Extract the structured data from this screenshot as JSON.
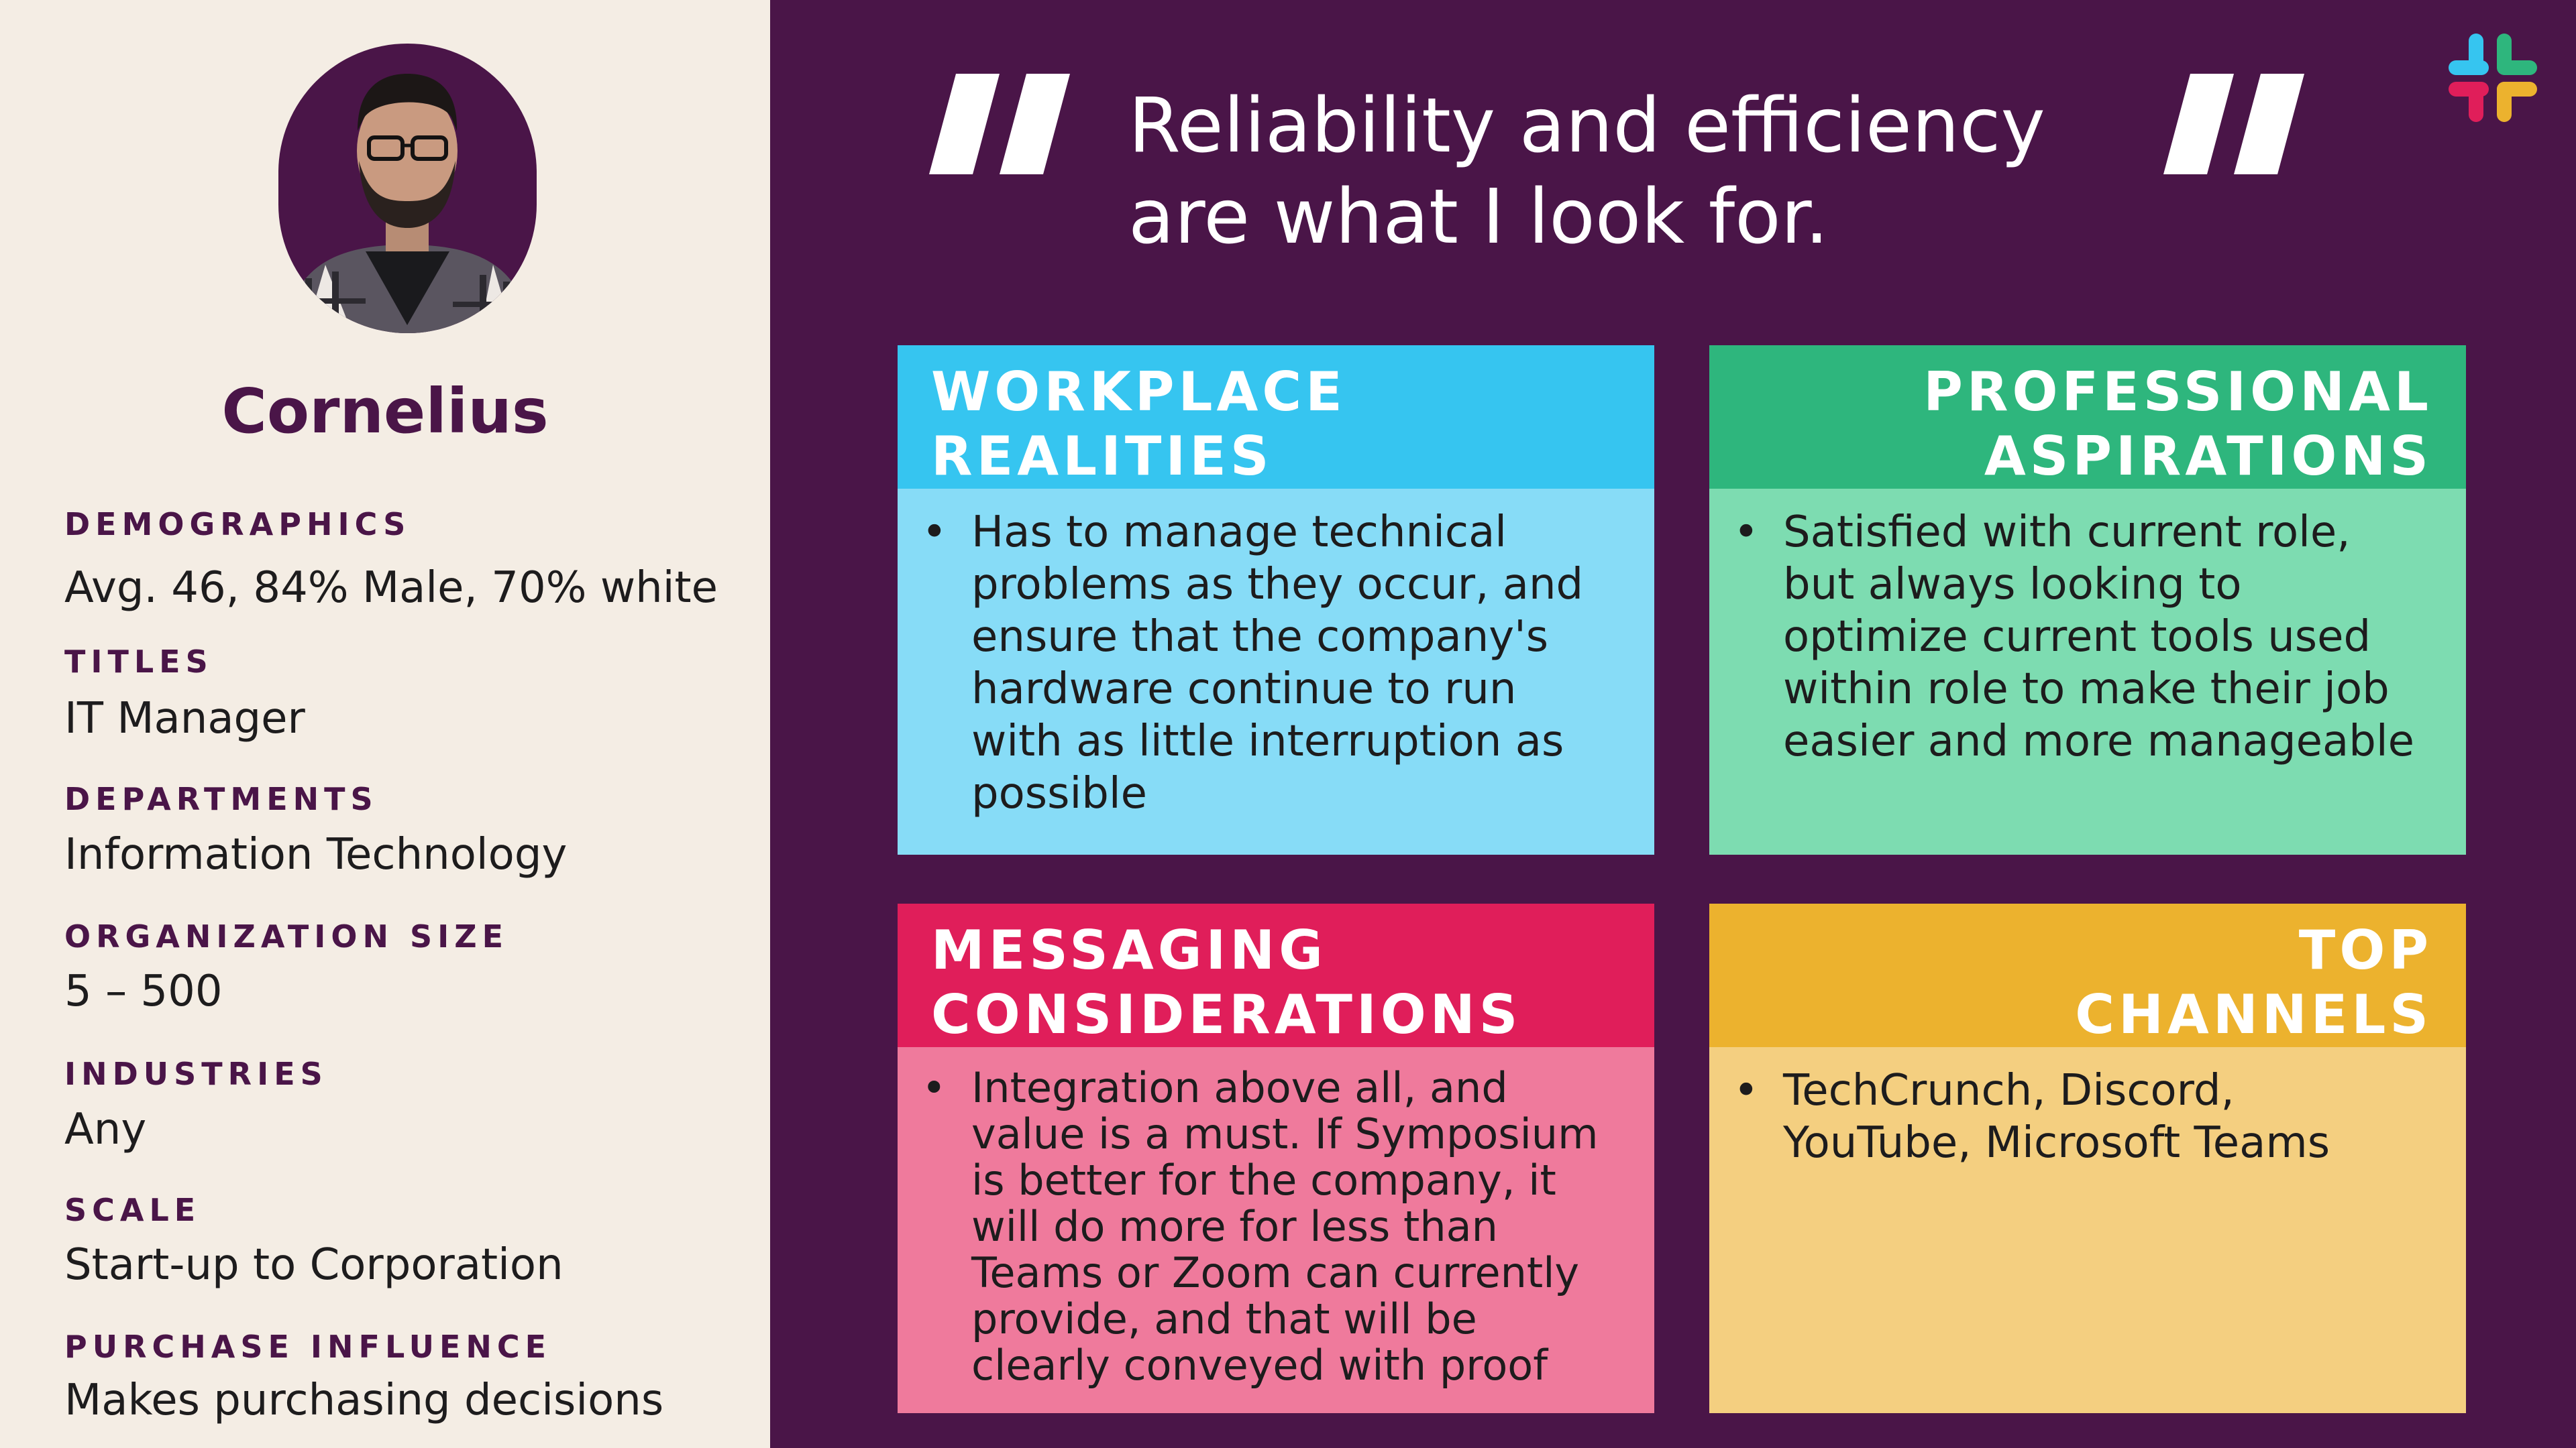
{
  "persona": {
    "name": "Cornelius",
    "attributes": [
      {
        "label": "DEMOGRAPHICS",
        "value": "Avg. 46, 84% Male, 70% white"
      },
      {
        "label": "TITLES",
        "value": "IT Manager"
      },
      {
        "label": "DEPARTMENTS",
        "value": "Information Technology"
      },
      {
        "label": "ORGANIZATION SIZE",
        "value": "5 – 500"
      },
      {
        "label": "INDUSTRIES",
        "value": "Any"
      },
      {
        "label": "SCALE",
        "value": "Start-up to Corporation"
      },
      {
        "label": "PURCHASE INFLUENCE",
        "value": "Makes purchasing decisions"
      }
    ]
  },
  "quote": {
    "line1": "Reliability and efficiency",
    "line2": "are what I look for."
  },
  "cards": [
    {
      "title_line1": "WORKPLACE",
      "title_line2": "REALITIES",
      "bullet": "•",
      "body": "Has to manage technical problems as they occur, and ensure that the company's hardware continue to run with as little interruption as possible",
      "header_color": "#36c5f0",
      "body_color": "#87dcf7"
    },
    {
      "title_line1": "PROFESSIONAL",
      "title_line2": "ASPIRATIONS",
      "bullet": "•",
      "body": "Satisfied with current role, but always looking to optimize current tools used within role to make their job easier and more manageable",
      "header_color": "#2eb67d",
      "body_color": "#7ddcb1"
    },
    {
      "title_line1": "MESSAGING",
      "title_line2": "CONSIDERATIONS",
      "bullet": "•",
      "body": "Integration above all, and value is a must. If Symposium is better for the company, it will do more for less than Teams or Zoom can currently provide, and that will be clearly conveyed with proof",
      "header_color": "#e01e5a",
      "body_color": "#ef7a9c"
    },
    {
      "title_line1": "TOP",
      "title_line2": "CHANNELS",
      "bullet": "•",
      "body": "TechCrunch, Discord, YouTube, Microsoft Teams",
      "header_color": "#ecb22e",
      "body_color": "#f4cf80"
    }
  ],
  "colors": {
    "brand_aubergine": "#4a1548",
    "sidebar_bg": "#f4ede4"
  },
  "icons": {
    "logo": "slack-logo-icon",
    "quote_open": "open-quote-icon",
    "quote_close": "close-quote-icon"
  }
}
